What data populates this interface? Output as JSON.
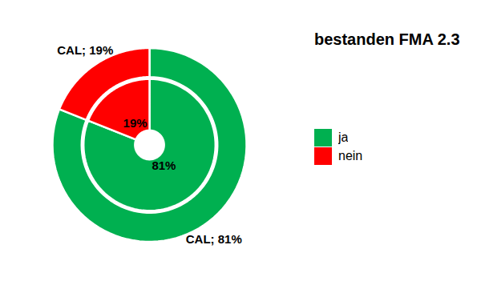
{
  "chart_data": {
    "type": "pie",
    "title": "bestanden FMA 2.3",
    "categories": [
      "ja",
      "nein"
    ],
    "colors": [
      "#00b050",
      "#ff0000"
    ],
    "series": [
      {
        "values": [
          81,
          19
        ],
        "value_labels": [
          "CAL; 81%",
          "CAL; 19%"
        ]
      },
      {
        "values": [
          81,
          19
        ],
        "value_labels": [
          "81%",
          "19%"
        ]
      }
    ],
    "data_labels": true,
    "legend": "right"
  }
}
